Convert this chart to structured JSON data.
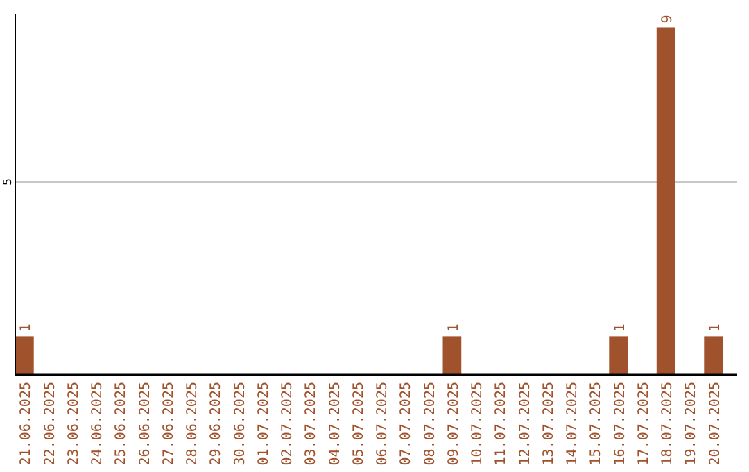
{
  "chart_data": {
    "type": "bar",
    "categories": [
      "21.06.2025",
      "22.06.2025",
      "23.06.2025",
      "24.06.2025",
      "25.06.2025",
      "26.06.2025",
      "27.06.2025",
      "28.06.2025",
      "29.06.2025",
      "30.06.2025",
      "01.07.2025",
      "02.07.2025",
      "03.07.2025",
      "04.07.2025",
      "05.07.2025",
      "06.07.2025",
      "07.07.2025",
      "08.07.2025",
      "09.07.2025",
      "10.07.2025",
      "11.07.2025",
      "12.07.2025",
      "13.07.2025",
      "14.07.2025",
      "15.07.2025",
      "16.07.2025",
      "17.07.2025",
      "18.07.2025",
      "19.07.2025",
      "20.07.2025"
    ],
    "values": [
      1,
      0,
      0,
      0,
      0,
      0,
      0,
      0,
      0,
      0,
      0,
      0,
      0,
      0,
      0,
      0,
      0,
      0,
      1,
      0,
      0,
      0,
      0,
      0,
      0,
      1,
      0,
      9,
      0,
      1
    ],
    "value_labels": [
      "1",
      null,
      null,
      null,
      null,
      null,
      null,
      null,
      null,
      null,
      null,
      null,
      null,
      null,
      null,
      null,
      null,
      null,
      "1",
      null,
      null,
      null,
      null,
      null,
      null,
      "1",
      null,
      "9",
      null,
      "1"
    ],
    "color": "#a0522d",
    "ylim": [
      0,
      9.35
    ],
    "yticks": [
      5
    ],
    "grid": "y"
  }
}
